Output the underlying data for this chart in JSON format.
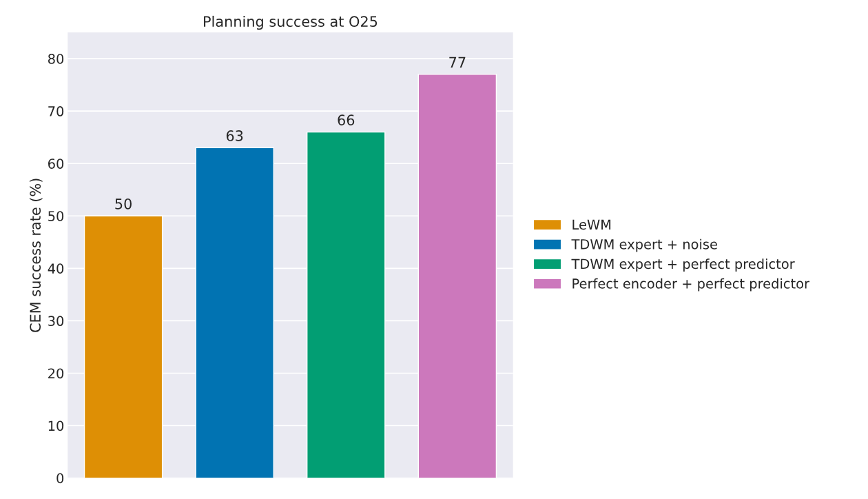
{
  "chart_data": {
    "type": "bar",
    "title": "Planning success at O25",
    "ylabel": "CEM success rate (%)",
    "categories": [
      null,
      null,
      null,
      null
    ],
    "series": [
      {
        "name": "LeWM",
        "color": "#de8f05",
        "values": [
          50,
          null,
          null,
          null
        ]
      },
      {
        "name": "TDWM expert + noise",
        "color": "#0173b2",
        "values": [
          null,
          63,
          null,
          null
        ]
      },
      {
        "name": "TDWM expert + perfect predictor",
        "color": "#029e73",
        "values": [
          null,
          null,
          66,
          null
        ]
      },
      {
        "name": "Perfect encoder + perfect predictor",
        "color": "#cc78bc",
        "values": [
          null,
          null,
          null,
          77
        ]
      }
    ],
    "ylim": [
      0,
      85
    ],
    "yticks": [
      0,
      10,
      20,
      30,
      40,
      50,
      60,
      70,
      80
    ],
    "grid": "y",
    "legend": "right",
    "data_labels": true
  }
}
